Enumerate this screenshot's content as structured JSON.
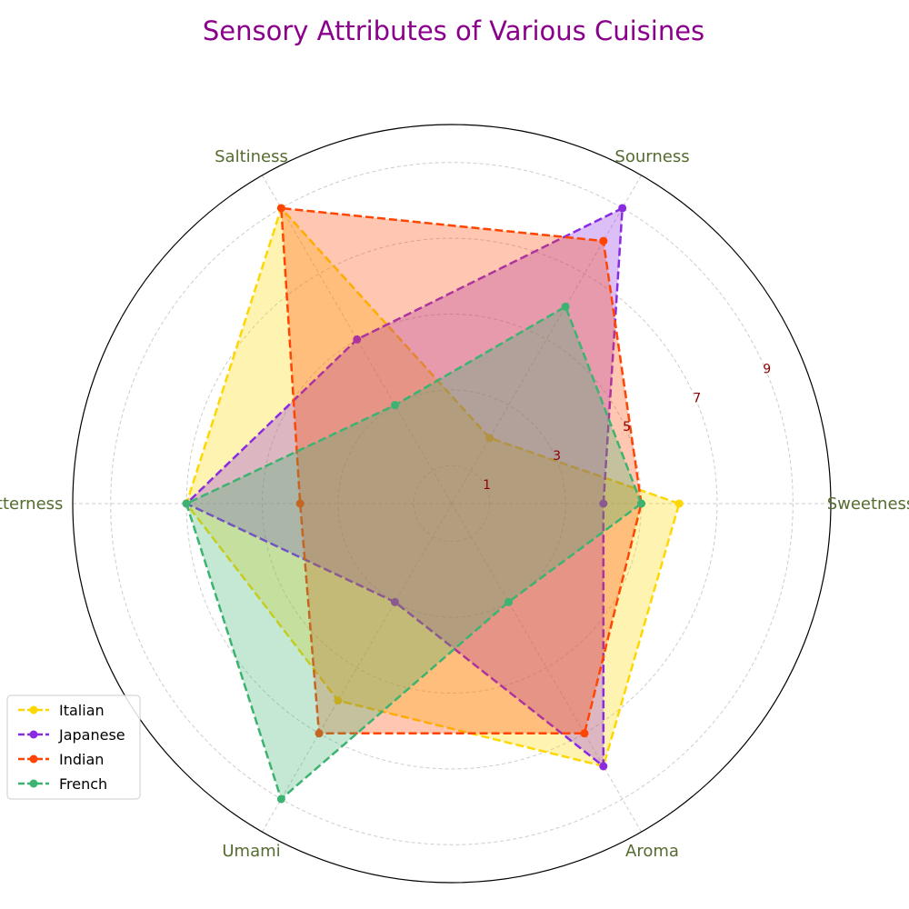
{
  "chart_data": {
    "type": "radar",
    "title": "Sensory Attributes of Various Cuisines",
    "categories": [
      "Sweetness",
      "Sourness",
      "Saltiness",
      "Bitterness",
      "Umami",
      "Aroma"
    ],
    "r_ticks": [
      1,
      3,
      5,
      7,
      9
    ],
    "r_range": [
      0,
      10
    ],
    "grid": true,
    "legend_position": "lower-left",
    "title_color": "#8B008B",
    "axis_label_color": "#556B2F",
    "tick_label_color": "#8B0000",
    "series": [
      {
        "name": "Italian",
        "color": "#FFD700",
        "values": [
          6,
          2,
          9,
          7,
          6,
          8
        ]
      },
      {
        "name": "Japanese",
        "color": "#8A2BE2",
        "values": [
          4,
          9,
          5,
          7,
          3,
          8
        ]
      },
      {
        "name": "Indian",
        "color": "#FF4500",
        "values": [
          5,
          8,
          9,
          4,
          7,
          7
        ]
      },
      {
        "name": "French",
        "color": "#3CB371",
        "values": [
          5,
          6,
          3,
          7,
          9,
          3
        ]
      }
    ]
  }
}
